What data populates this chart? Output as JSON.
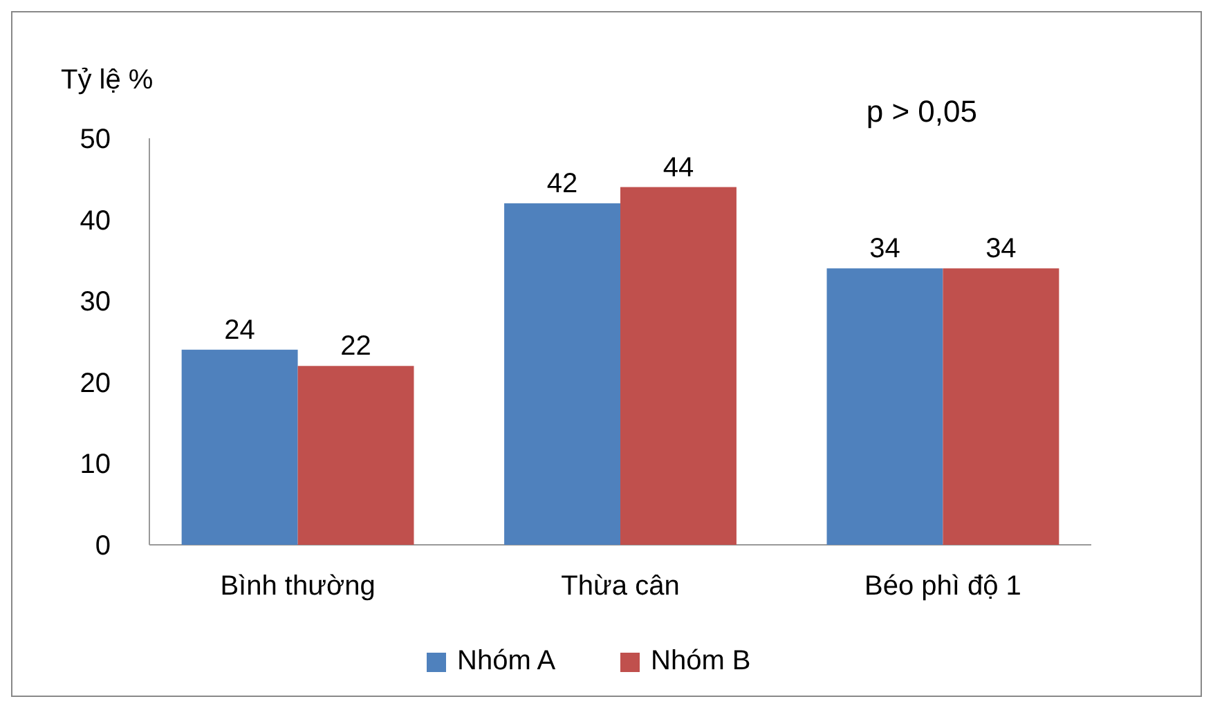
{
  "chart_data": {
    "type": "bar",
    "ylabel": "Tỷ lệ %",
    "categories": [
      "Bình thường",
      "Thừa cân",
      "Béo phì độ 1"
    ],
    "series": [
      {
        "name": "Nhóm A",
        "color": "#4f81bd",
        "values": [
          24,
          42,
          34
        ]
      },
      {
        "name": "Nhóm B",
        "color": "#c0504d",
        "values": [
          22,
          44,
          34
        ]
      }
    ],
    "ylim": [
      0,
      50
    ],
    "yticks": [
      0,
      10,
      20,
      30,
      40,
      50
    ],
    "data_labels": true,
    "legend": "bottom",
    "grid": false,
    "annotations": [
      "p > 0,05"
    ]
  }
}
